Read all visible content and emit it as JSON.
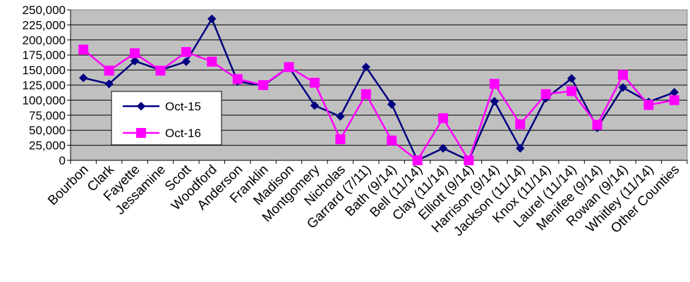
{
  "chart_data": {
    "type": "line",
    "categories": [
      "Bourbon",
      "Clark",
      "Fayette",
      "Jessamine",
      "Scott",
      "Woodford",
      "Anderson",
      "Franklin",
      "Madison",
      "Montgomery",
      "Nicholas",
      "Garrard (7/11)",
      "Bath (9/14)",
      "Bell (11/14)",
      "Clay (11/14)",
      "Elliott (9/14)",
      "Harrison (9/14)",
      "Jackson (11/14)",
      "Knox (11/14)",
      "Laurel (11/14)",
      "Menifee (9/14)",
      "Rowan (9/14)",
      "Whitley (11/14)",
      "Other Counties"
    ],
    "series": [
      {
        "name": "Oct-15",
        "color": "#000080",
        "marker": "diamond",
        "values": [
          137000,
          127000,
          165000,
          150000,
          164000,
          235000,
          131000,
          124000,
          155000,
          91000,
          73000,
          155000,
          93000,
          0,
          20000,
          0,
          98000,
          20000,
          103000,
          136000,
          54000,
          121000,
          97000,
          113000
        ]
      },
      {
        "name": "Oct-16",
        "color": "#ff00ff",
        "marker": "square",
        "values": [
          184000,
          149000,
          178000,
          149000,
          180000,
          164000,
          135000,
          125000,
          155000,
          129000,
          35000,
          110000,
          33000,
          0,
          70000,
          0,
          127000,
          60000,
          110000,
          115000,
          59000,
          142000,
          92000,
          100000
        ]
      }
    ],
    "yticks": [
      "0",
      "25,000",
      "50,000",
      "75,000",
      "100,000",
      "125,000",
      "150,000",
      "175,000",
      "200,000",
      "225,000",
      "250,000"
    ],
    "ylim": [
      0,
      250000
    ],
    "ystep": 25000,
    "grid": true,
    "legend": "left",
    "plot_bg": "#c0c0c0"
  }
}
